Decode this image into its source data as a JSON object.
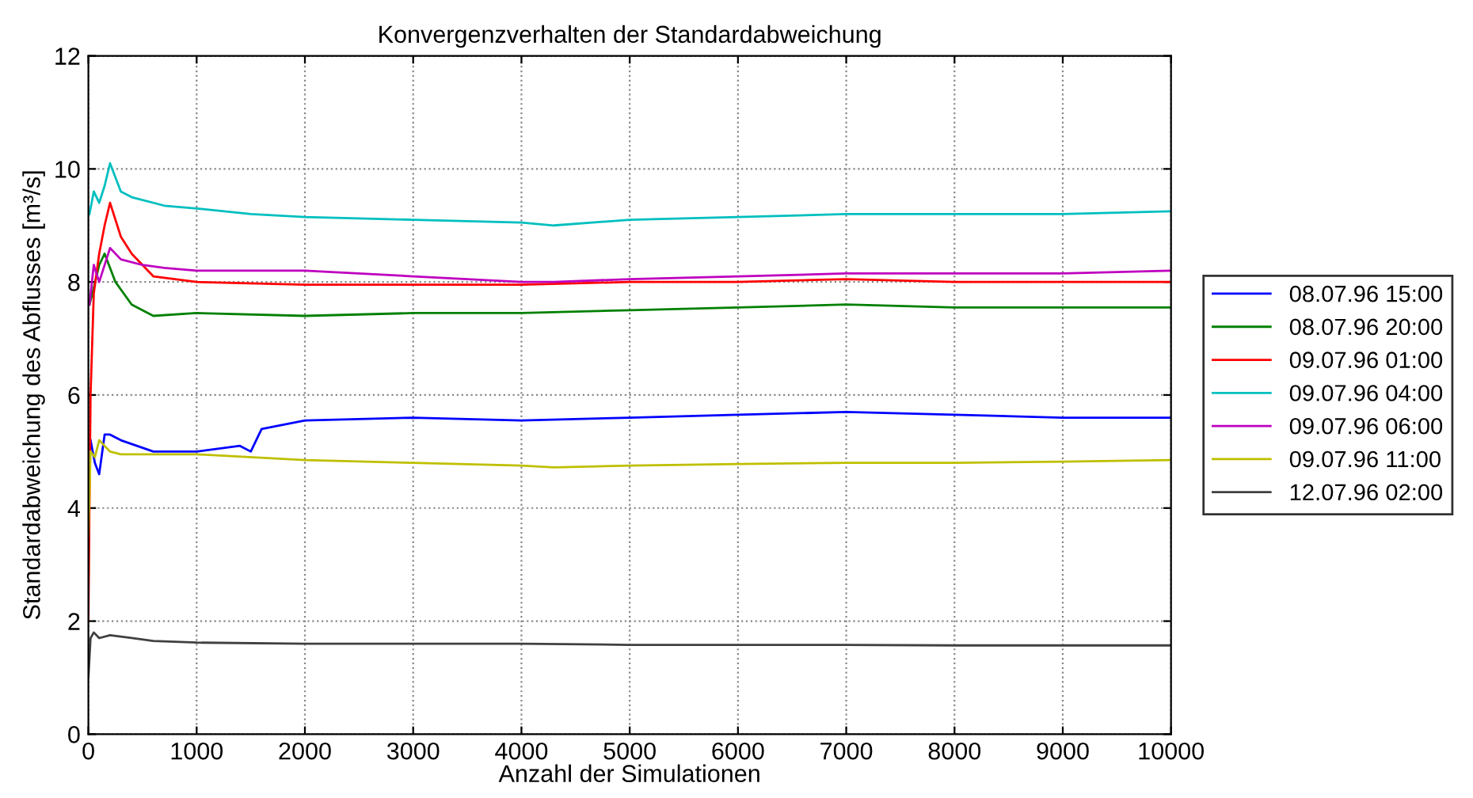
{
  "chart_data": {
    "type": "line",
    "title": "Konvergenzverhalten der Standardabweichung",
    "xlabel": "Anzahl der Simulationen",
    "ylabel": "Standardabweichung des Abflusses [m³/s]",
    "xlim": [
      0,
      10000
    ],
    "xticks": [
      0,
      1000,
      2000,
      3000,
      4000,
      5000,
      6000,
      7000,
      8000,
      9000,
      10000
    ],
    "ylim": [
      0,
      12
    ],
    "yticks": [
      0,
      2,
      4,
      6,
      8,
      10,
      12
    ],
    "grid": true,
    "legend": "right",
    "line_style": "solid",
    "series": [
      {
        "name": "08.07.96 15:00",
        "color": "#0000ff",
        "x": [
          20,
          60,
          100,
          150,
          200,
          300,
          600,
          1000,
          1400,
          1500,
          1600,
          2000,
          3000,
          4000,
          5000,
          6000,
          7000,
          8000,
          9000,
          10000
        ],
        "values": [
          5.2,
          4.8,
          4.6,
          5.3,
          5.3,
          5.2,
          5.0,
          5.0,
          5.1,
          5.0,
          5.4,
          5.55,
          5.6,
          5.55,
          5.6,
          5.65,
          5.7,
          5.65,
          5.6,
          5.6
        ]
      },
      {
        "name": "08.07.96 20:00",
        "color": "#008000",
        "x": [
          10,
          50,
          100,
          150,
          250,
          400,
          600,
          1000,
          2000,
          3000,
          4000,
          5000,
          6000,
          7000,
          8000,
          9000,
          10000
        ],
        "values": [
          7.6,
          7.9,
          8.3,
          8.5,
          8.0,
          7.6,
          7.4,
          7.45,
          7.4,
          7.45,
          7.45,
          7.5,
          7.55,
          7.6,
          7.55,
          7.55,
          7.55
        ]
      },
      {
        "name": "09.07.96 01:00",
        "color": "#ff0000",
        "x": [
          0,
          20,
          50,
          100,
          150,
          200,
          300,
          400,
          600,
          800,
          1000,
          2000,
          3000,
          4000,
          5000,
          6000,
          7000,
          8000,
          9000,
          10000
        ],
        "values": [
          2.0,
          6.0,
          7.8,
          8.5,
          9.0,
          9.4,
          8.8,
          8.5,
          8.1,
          8.05,
          8.0,
          7.95,
          7.95,
          7.95,
          8.0,
          8.0,
          8.05,
          8.0,
          8.0,
          8.0
        ]
      },
      {
        "name": "09.07.96 04:00",
        "color": "#00bfbf",
        "x": [
          10,
          50,
          100,
          150,
          200,
          300,
          400,
          700,
          1000,
          1500,
          2000,
          3000,
          4000,
          4300,
          5000,
          6000,
          7000,
          8000,
          9000,
          10000
        ],
        "values": [
          9.2,
          9.6,
          9.4,
          9.7,
          10.1,
          9.6,
          9.5,
          9.35,
          9.3,
          9.2,
          9.15,
          9.1,
          9.05,
          9.0,
          9.1,
          9.15,
          9.2,
          9.2,
          9.2,
          9.25
        ]
      },
      {
        "name": "09.07.96 06:00",
        "color": "#bf00bf",
        "x": [
          10,
          50,
          100,
          200,
          300,
          500,
          700,
          1000,
          2000,
          3000,
          4000,
          4300,
          5000,
          6000,
          7000,
          8000,
          9000,
          10000
        ],
        "values": [
          7.6,
          8.3,
          8.0,
          8.6,
          8.4,
          8.3,
          8.25,
          8.2,
          8.2,
          8.1,
          8.0,
          8.0,
          8.05,
          8.1,
          8.15,
          8.15,
          8.15,
          8.2
        ]
      },
      {
        "name": "09.07.96 11:00",
        "color": "#bfbf00",
        "x": [
          0,
          20,
          60,
          100,
          200,
          300,
          600,
          1000,
          2000,
          3000,
          4000,
          4300,
          5000,
          6000,
          7000,
          8000,
          9000,
          10000
        ],
        "values": [
          3.5,
          5.0,
          4.9,
          5.2,
          5.0,
          4.95,
          4.95,
          4.95,
          4.85,
          4.8,
          4.75,
          4.72,
          4.75,
          4.78,
          4.8,
          4.8,
          4.82,
          4.85
        ]
      },
      {
        "name": "12.07.96 02:00",
        "color": "#404040",
        "x": [
          0,
          20,
          50,
          100,
          200,
          400,
          600,
          1000,
          2000,
          3000,
          4000,
          5000,
          6000,
          7000,
          8000,
          9000,
          10000
        ],
        "values": [
          1.0,
          1.7,
          1.8,
          1.7,
          1.75,
          1.7,
          1.65,
          1.62,
          1.6,
          1.6,
          1.6,
          1.58,
          1.58,
          1.58,
          1.57,
          1.57,
          1.57
        ]
      }
    ]
  }
}
